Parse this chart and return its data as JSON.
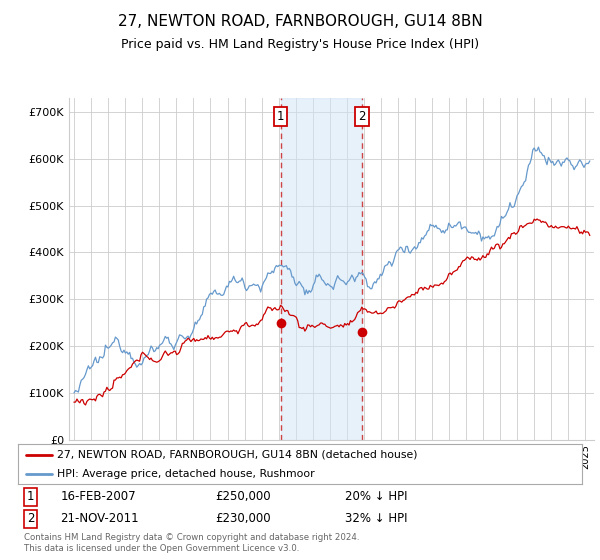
{
  "title": "27, NEWTON ROAD, FARNBOROUGH, GU14 8BN",
  "subtitle": "Price paid vs. HM Land Registry's House Price Index (HPI)",
  "title_fontsize": 11,
  "subtitle_fontsize": 9,
  "ylim": [
    0,
    730000
  ],
  "yticks": [
    0,
    100000,
    200000,
    300000,
    400000,
    500000,
    600000,
    700000
  ],
  "ytick_labels": [
    "£0",
    "£100K",
    "£200K",
    "£300K",
    "£400K",
    "£500K",
    "£600K",
    "£700K"
  ],
  "xlim_start": 1994.7,
  "xlim_end": 2025.5,
  "marker1_x": 2007.12,
  "marker1_y": 250000,
  "marker1_label": "16-FEB-2007",
  "marker1_price": "£250,000",
  "marker1_hpi": "20% ↓ HPI",
  "marker2_x": 2011.9,
  "marker2_y": 230000,
  "marker2_label": "21-NOV-2011",
  "marker2_price": "£230,000",
  "marker2_hpi": "32% ↓ HPI",
  "line_price_color": "#cc0000",
  "line_hpi_color": "#6699cc",
  "shade_color": "#d0e4f7",
  "shade_alpha": 0.5,
  "grid_color": "#cccccc",
  "legend_label_price": "27, NEWTON ROAD, FARNBOROUGH, GU14 8BN (detached house)",
  "legend_label_hpi": "HPI: Average price, detached house, Rushmoor",
  "footer_text": "Contains HM Land Registry data © Crown copyright and database right 2024.\nThis data is licensed under the Open Government Licence v3.0.",
  "background_color": "#ffffff"
}
